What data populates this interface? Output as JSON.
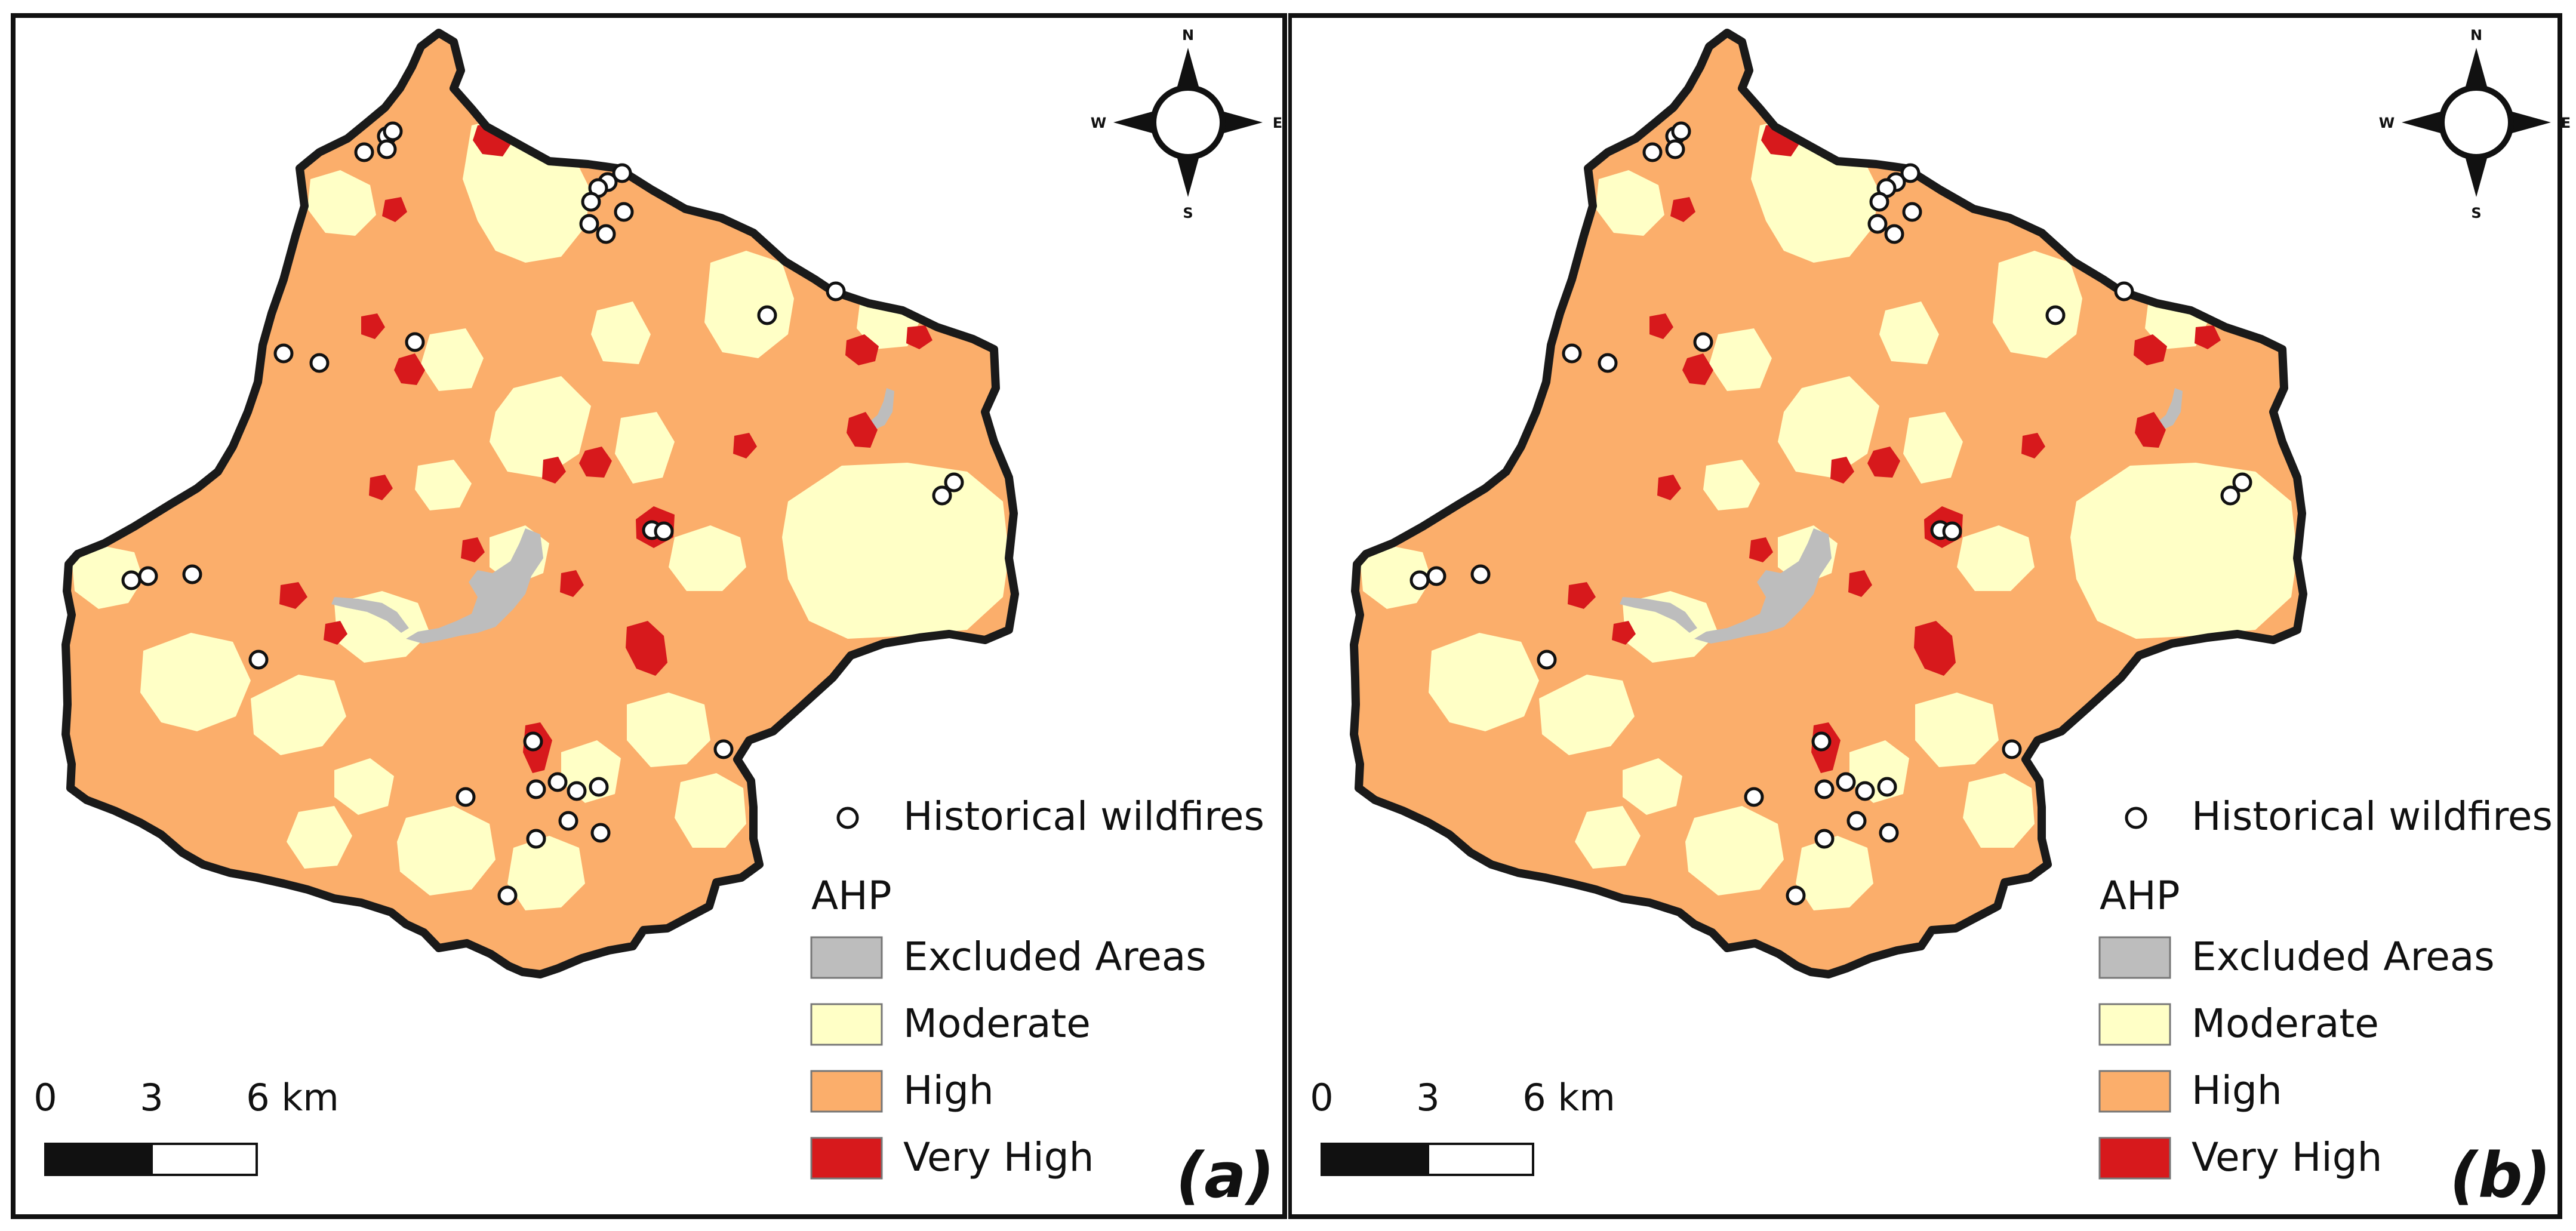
{
  "panels": [
    {
      "id": "a",
      "tag": "(a)",
      "compass": {
        "north": "N",
        "south": "S",
        "east": "E",
        "west": "W"
      },
      "scalebar": {
        "labels": [
          "0",
          "3",
          "6 km"
        ]
      },
      "legend": {
        "point_label": "Historical wildfires",
        "title": "AHP",
        "classes": [
          {
            "label": "Excluded Areas",
            "color": "#bdbdbd"
          },
          {
            "label": "Moderate",
            "color": "#ffffc6"
          },
          {
            "label": "High",
            "color": "#fbae6b"
          },
          {
            "label": "Very High",
            "color": "#d7191c"
          }
        ]
      }
    },
    {
      "id": "b",
      "tag": "(b)",
      "compass": {
        "north": "N",
        "south": "S",
        "east": "E",
        "west": "W"
      },
      "scalebar": {
        "labels": [
          "0",
          "3",
          "6 km"
        ]
      },
      "legend": {
        "point_label": "Historical wildfires",
        "title": "AHP",
        "classes": [
          {
            "label": "Excluded Areas",
            "color": "#bdbdbd"
          },
          {
            "label": "Moderate",
            "color": "#ffffc6"
          },
          {
            "label": "High",
            "color": "#fbae6b"
          },
          {
            "label": "Very High",
            "color": "#d7191c"
          }
        ]
      }
    }
  ],
  "colors": {
    "frame": "#111111",
    "boundary": "#1a1a1a",
    "wildfire_fill": "#ffffff"
  }
}
